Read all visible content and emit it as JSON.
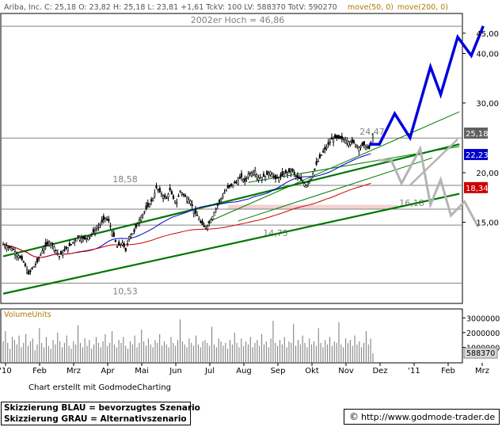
{
  "header": {
    "ticker_line": "Ariba, Inc.   C: 25,18  O: 23,82  H: 25,18  L: 23,81  +1,61  TckV: 100  LV: 588370  TotV: 590270",
    "ma_label": "move(50, 0)",
    "ma2_label": "move(200, 0)"
  },
  "credit": "Chart erstellt mit GodmodeCharting",
  "legend": {
    "blue": "Skizzierung BLAU = bevorzugtes Szenario",
    "grey": "Skizzierung GRAU = Alternativszenario"
  },
  "url": "http://www.godmode-trader.de",
  "icon_names": {
    "copyright": "copyright-icon"
  },
  "colors": {
    "price": "#000000",
    "ma50": "#0000cc",
    "ma200": "#cc0000",
    "trend": "#007700",
    "scenario_blue": "#0000dd",
    "scenario_grey": "#b4b4b4",
    "level": "#808080",
    "resistance_fill": "#f3d2d2"
  },
  "chart_data": [
    {
      "type": "candlestick",
      "title": "Ariba, Inc.",
      "ylim": [
        9.4,
        50
      ],
      "y_scale": "log",
      "grid": false,
      "y_ticks": [
        "15,00",
        "20,00",
        "30,00",
        "40,00",
        "45,00"
      ],
      "x_ticks": [
        "'10",
        "Feb",
        "Mrz",
        "Apr",
        "Mai",
        "Jun",
        "Jul",
        "Aug",
        "Sep",
        "Okt",
        "Nov",
        "Dez",
        "'11",
        "Feb",
        "Mrz"
      ],
      "value_tags": [
        {
          "text": "25,18",
          "value": 25.18,
          "color": "#606060"
        },
        {
          "text": "22,23",
          "value": 22.23,
          "color": "#0000cc"
        },
        {
          "text": "18,34",
          "value": 18.34,
          "color": "#cc0000"
        }
      ],
      "level_labels": [
        {
          "text": "2002er Hoch = 46,86",
          "value": 46.86
        },
        {
          "text": "24,47",
          "value": 24.47
        },
        {
          "text": "18,58",
          "value": 18.58
        },
        {
          "text": "16,18",
          "value": 16.18
        },
        {
          "text": "14,75",
          "value": 14.75
        },
        {
          "text": "10,53",
          "value": 10.53
        }
      ],
      "horizontal_levels": [
        46.86,
        24.47,
        18.58,
        16.18,
        14.75,
        10.53
      ],
      "price_series": [
        [
          0,
          13.2
        ],
        [
          0.3,
          12.8
        ],
        [
          0.5,
          12.2
        ],
        [
          0.6,
          11.9
        ],
        [
          0.75,
          11.1
        ],
        [
          0.9,
          11.6
        ],
        [
          1.0,
          11.9
        ],
        [
          1.15,
          12.7
        ],
        [
          1.35,
          13.4
        ],
        [
          1.5,
          13.0
        ],
        [
          1.65,
          12.3
        ],
        [
          1.8,
          12.7
        ],
        [
          2.0,
          13.2
        ],
        [
          2.2,
          13.8
        ],
        [
          2.4,
          13.6
        ],
        [
          2.6,
          14.0
        ],
        [
          2.8,
          14.6
        ],
        [
          3.0,
          15.4
        ],
        [
          3.1,
          15.1
        ],
        [
          3.2,
          14.2
        ],
        [
          3.35,
          13.0
        ],
        [
          3.5,
          13.3
        ],
        [
          3.6,
          12.7
        ],
        [
          3.7,
          13.8
        ],
        [
          3.85,
          14.2
        ],
        [
          4.0,
          15.2
        ],
        [
          4.2,
          16.2
        ],
        [
          4.4,
          17.2
        ],
        [
          4.5,
          18.3
        ],
        [
          4.7,
          17.5
        ],
        [
          4.8,
          17.2
        ],
        [
          4.9,
          18.1
        ],
        [
          5.0,
          17.2
        ],
        [
          5.1,
          16.8
        ],
        [
          5.2,
          18.0
        ],
        [
          5.35,
          17.4
        ],
        [
          5.5,
          17.0
        ],
        [
          5.6,
          16.0
        ],
        [
          5.7,
          15.6
        ],
        [
          5.8,
          15.0
        ],
        [
          5.9,
          14.6
        ],
        [
          6.0,
          14.7
        ],
        [
          6.15,
          15.5
        ],
        [
          6.3,
          16.6
        ],
        [
          6.5,
          17.8
        ],
        [
          6.6,
          18.3
        ],
        [
          6.8,
          18.8
        ],
        [
          7.0,
          19.5
        ],
        [
          7.1,
          19.0
        ],
        [
          7.2,
          19.8
        ],
        [
          7.4,
          20.2
        ],
        [
          7.5,
          19.4
        ],
        [
          7.7,
          19.6
        ],
        [
          7.85,
          20.1
        ],
        [
          8.0,
          19.3
        ],
        [
          8.1,
          19.4
        ],
        [
          8.3,
          20.0
        ],
        [
          8.5,
          20.2
        ],
        [
          8.6,
          19.6
        ],
        [
          8.8,
          19.0
        ],
        [
          8.9,
          18.6
        ],
        [
          9.0,
          19.2
        ],
        [
          9.1,
          19.9
        ],
        [
          9.2,
          21.0
        ],
        [
          9.35,
          22.2
        ],
        [
          9.5,
          23.2
        ],
        [
          9.65,
          24.3
        ],
        [
          9.8,
          24.47
        ],
        [
          10.0,
          24.3
        ],
        [
          10.15,
          24.0
        ],
        [
          10.3,
          23.8
        ],
        [
          10.45,
          23.2
        ],
        [
          10.6,
          23.5
        ],
        [
          10.75,
          23.0
        ],
        [
          10.8,
          23.82
        ],
        [
          10.86,
          25.18
        ]
      ],
      "volume_panel": {
        "title": "VolumeUnits",
        "ylim": [
          0,
          3500000
        ],
        "y_ticks": [
          "1000000",
          "2000000",
          "3000000"
        ],
        "last_value": "588370",
        "values": [
          1400000,
          2100000,
          1300000,
          900000,
          1700000,
          1500000,
          1200000,
          1800000,
          1000000,
          1300000,
          1900000,
          1100000,
          1400000,
          1600000,
          800000,
          1200000,
          2300000,
          1300000,
          1000000,
          1700000,
          1100000,
          900000,
          1500000,
          1200000,
          2000000,
          1400000,
          1000000,
          1300000,
          1800000,
          1100000,
          900000,
          1400000,
          1200000,
          2500000,
          1300000,
          1000000,
          1600000,
          1100000,
          1500000,
          900000,
          1200000,
          1700000,
          1300000,
          1000000,
          1400000,
          1900000,
          1100000,
          1300000,
          2100000,
          1200000,
          1000000,
          1500000,
          1300000,
          1700000,
          1100000,
          900000,
          1400000,
          1200000,
          1800000,
          1000000,
          1300000,
          2200000,
          1400000,
          1100000,
          1600000,
          1200000,
          1000000,
          1500000,
          1300000,
          1900000,
          1100000,
          1400000,
          1200000,
          1000000,
          1700000,
          1300000,
          1100000,
          1500000,
          2900000,
          1400000,
          1200000,
          1000000,
          1600000,
          1300000,
          1100000,
          1800000,
          1200000,
          1000000,
          1400000,
          1500000,
          1300000,
          1100000,
          2400000,
          1200000,
          1000000,
          1600000,
          1400000,
          1100000,
          1300000,
          900000,
          1500000,
          1200000,
          2000000,
          1300000,
          1000000,
          1600000,
          1100000,
          1400000,
          1200000,
          1700000,
          1000000,
          1300000,
          1500000,
          1100000,
          1900000,
          1200000,
          1400000,
          1000000,
          1600000,
          2800000,
          1300000,
          1100000,
          1500000,
          1200000,
          1700000,
          1000000,
          1400000,
          1300000,
          2600000,
          1100000,
          1500000,
          1200000,
          1800000,
          1300000,
          1000000,
          1600000,
          1200000,
          1400000,
          1100000,
          2300000,
          1300000,
          1000000,
          1500000,
          1200000,
          1700000,
          1100000,
          1400000,
          1300000,
          2700000,
          1200000,
          1000000,
          1600000,
          1300000,
          1500000,
          1100000,
          1800000,
          1200000,
          1400000,
          1000000,
          1300000,
          2100000,
          1200000,
          1600000,
          588370
        ]
      }
    }
  ]
}
